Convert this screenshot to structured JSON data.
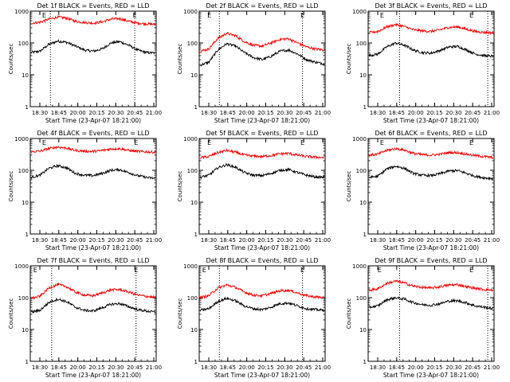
{
  "figure": {
    "common_xlabel": "Start Time (23-Apr-07 18:21:00)",
    "ylabel": "Counts/sec",
    "x_tick_labels": [
      "18:30",
      "18:45",
      "20:00",
      "20:15",
      "20:30",
      "20:45",
      "21:00"
    ],
    "y_tick_labels": [
      "1",
      "10",
      "100",
      "1000"
    ],
    "colors": {
      "events": "#000000",
      "lld": "#ff0000",
      "axis": "#000000"
    }
  },
  "chart_data": [
    {
      "type": "line",
      "detector": "1f",
      "title": "Det 1f BLACK = Events, RED = LLD",
      "xlabel": "Start Time (23-Apr-07 18:21:00)",
      "ylabel": "Counts/sec",
      "x_ticks": [
        "18:30",
        "18:45",
        "20:00",
        "20:15",
        "20:30",
        "20:45",
        "21:00"
      ],
      "ylim": [
        1,
        1000
      ],
      "yscale": "log",
      "markers": [
        {
          "pos": 0.11,
          "label": "E"
        },
        {
          "pos": 0.83,
          "label": "E"
        }
      ],
      "dotted_lines": [
        0.16,
        0.83
      ],
      "series": [
        {
          "name": "Events",
          "color": "#000000",
          "values": [
            50,
            55,
            90,
            115,
            105,
            80,
            60,
            55,
            65,
            100,
            110,
            85,
            60,
            50,
            48
          ]
        },
        {
          "name": "LLD",
          "color": "#ff0000",
          "values": [
            420,
            450,
            560,
            650,
            600,
            480,
            440,
            420,
            460,
            560,
            580,
            480,
            420,
            400,
            380
          ]
        }
      ]
    },
    {
      "type": "line",
      "detector": "2f",
      "title": "Det 2f BLACK = Events, RED = LLD",
      "xlabel": "Start Time (23-Apr-07 18:21:00)",
      "ylabel": "Counts/sec",
      "x_ticks": [
        "18:30",
        "18:45",
        "20:00",
        "20:15",
        "20:30",
        "20:45",
        "21:00"
      ],
      "ylim": [
        1,
        1000
      ],
      "yscale": "log",
      "markers": [
        {
          "pos": 0.08,
          "label": "E"
        },
        {
          "pos": 0.82,
          "label": "E"
        }
      ],
      "dotted_lines": [
        0.16,
        0.82
      ],
      "series": [
        {
          "name": "Events",
          "color": "#000000",
          "values": [
            20,
            25,
            60,
            95,
            80,
            50,
            35,
            30,
            38,
            55,
            60,
            45,
            30,
            25,
            22
          ]
        },
        {
          "name": "LLD",
          "color": "#ff0000",
          "values": [
            55,
            65,
            140,
            200,
            170,
            110,
            85,
            80,
            100,
            130,
            135,
            100,
            75,
            65,
            60
          ]
        }
      ]
    },
    {
      "type": "line",
      "detector": "3f",
      "title": "Det 3f BLACK = Events, RED = LLD",
      "xlabel": "Start Time (23-Apr-07 18:21:00)",
      "ylabel": "Counts/sec",
      "x_ticks": [
        "18:30",
        "18:45",
        "20:00",
        "20:15",
        "20:30",
        "20:45",
        "21:00"
      ],
      "ylim": [
        1,
        1000
      ],
      "yscale": "log",
      "markers": [
        {
          "pos": 0.11,
          "label": "E"
        },
        {
          "pos": 0.82,
          "label": "E"
        }
      ],
      "dotted_lines": [
        0.25,
        0.95
      ],
      "series": [
        {
          "name": "Events",
          "color": "#000000",
          "values": [
            40,
            45,
            75,
            100,
            85,
            60,
            50,
            48,
            58,
            75,
            78,
            60,
            45,
            40,
            38
          ]
        },
        {
          "name": "LLD",
          "color": "#ff0000",
          "values": [
            210,
            230,
            320,
            380,
            330,
            260,
            240,
            230,
            260,
            310,
            320,
            270,
            230,
            215,
            210
          ]
        }
      ]
    },
    {
      "type": "line",
      "detector": "4f",
      "title": "Det 4f BLACK = Events, RED = LLD",
      "xlabel": "Start Time (23-Apr-07 18:21:00)",
      "ylabel": "Counts/sec",
      "x_ticks": [
        "18:30",
        "18:45",
        "20:00",
        "20:15",
        "20:30",
        "20:45",
        "21:00"
      ],
      "ylim": [
        1,
        1000
      ],
      "yscale": "log",
      "markers": [
        {
          "pos": 0.11,
          "label": "E"
        },
        {
          "pos": 0.84,
          "label": "E"
        }
      ],
      "dotted_lines": [],
      "series": [
        {
          "name": "Events",
          "color": "#000000",
          "values": [
            60,
            70,
            115,
            140,
            120,
            80,
            70,
            68,
            80,
            100,
            105,
            85,
            68,
            60,
            55
          ]
        },
        {
          "name": "LLD",
          "color": "#ff0000",
          "values": [
            380,
            400,
            480,
            540,
            500,
            420,
            400,
            390,
            420,
            470,
            480,
            420,
            390,
            380,
            370
          ]
        }
      ]
    },
    {
      "type": "line",
      "detector": "5f",
      "title": "Det 5f BLACK = Events, RED = LLD",
      "xlabel": "Start Time (23-Apr-07 18:21:00)",
      "ylabel": "Counts/sec",
      "x_ticks": [
        "18:30",
        "18:45",
        "20:00",
        "20:15",
        "20:30",
        "20:45",
        "21:00"
      ],
      "ylim": [
        1,
        1000
      ],
      "yscale": "log",
      "markers": [
        {
          "pos": 0.08,
          "label": "E"
        },
        {
          "pos": 0.82,
          "label": "E"
        }
      ],
      "dotted_lines": [],
      "series": [
        {
          "name": "Events",
          "color": "#000000",
          "values": [
            60,
            70,
            120,
            150,
            125,
            85,
            70,
            68,
            80,
            100,
            105,
            85,
            70,
            62,
            60
          ]
        },
        {
          "name": "LLD",
          "color": "#ff0000",
          "values": [
            250,
            270,
            360,
            420,
            370,
            300,
            280,
            270,
            290,
            330,
            340,
            300,
            270,
            260,
            250
          ]
        }
      ]
    },
    {
      "type": "line",
      "detector": "6f",
      "title": "Det 6f BLACK = Events, RED = LLD",
      "xlabel": "Start Time (23-Apr-07 18:21:00)",
      "ylabel": "Counts/sec",
      "x_ticks": [
        "18:30",
        "18:45",
        "20:00",
        "20:15",
        "20:30",
        "20:45",
        "21:00"
      ],
      "ylim": [
        1,
        1000
      ],
      "yscale": "log",
      "markers": [
        {
          "pos": 0.11,
          "label": "E"
        },
        {
          "pos": 0.82,
          "label": "E"
        }
      ],
      "dotted_lines": [],
      "series": [
        {
          "name": "Events",
          "color": "#000000",
          "values": [
            60,
            65,
            110,
            135,
            115,
            80,
            70,
            68,
            78,
            95,
            98,
            80,
            65,
            58,
            55
          ]
        },
        {
          "name": "LLD",
          "color": "#ff0000",
          "values": [
            300,
            320,
            420,
            480,
            430,
            340,
            310,
            300,
            320,
            360,
            360,
            320,
            290,
            270,
            250
          ]
        }
      ]
    },
    {
      "type": "line",
      "detector": "7f",
      "title": "Det 7f BLACK = Events, RED = LLD",
      "xlabel": "Start Time (23-Apr-07 18:21:00)",
      "ylabel": "Counts/sec",
      "x_ticks": [
        "18:30",
        "18:45",
        "20:00",
        "20:15",
        "20:30",
        "20:45",
        "21:00"
      ],
      "ylim": [
        1,
        1000
      ],
      "yscale": "log",
      "markers": [
        {
          "pos": 0.04,
          "label": "E"
        },
        {
          "pos": 0.84,
          "label": "E"
        }
      ],
      "dotted_lines": [
        0.17,
        0.84
      ],
      "series": [
        {
          "name": "Events",
          "color": "#000000",
          "values": [
            35,
            40,
            70,
            90,
            75,
            50,
            40,
            38,
            48,
            62,
            65,
            52,
            42,
            38,
            35
          ]
        },
        {
          "name": "LLD",
          "color": "#ff0000",
          "values": [
            95,
            110,
            200,
            260,
            220,
            150,
            120,
            115,
            140,
            175,
            180,
            150,
            120,
            110,
            100
          ]
        }
      ]
    },
    {
      "type": "line",
      "detector": "8f",
      "title": "Det 8f BLACK = Events, RED = LLD",
      "xlabel": "Start Time (23-Apr-07 18:21:00)",
      "ylabel": "Counts/sec",
      "x_ticks": [
        "18:30",
        "18:45",
        "20:00",
        "20:15",
        "20:30",
        "20:45",
        "21:00"
      ],
      "ylim": [
        1,
        1000
      ],
      "yscale": "log",
      "markers": [
        {
          "pos": 0.04,
          "label": "E"
        },
        {
          "pos": 0.82,
          "label": "E"
        }
      ],
      "dotted_lines": [
        0.16,
        0.82
      ],
      "series": [
        {
          "name": "Events",
          "color": "#000000",
          "values": [
            40,
            45,
            75,
            95,
            80,
            55,
            45,
            42,
            50,
            65,
            68,
            55,
            45,
            42,
            40
          ]
        },
        {
          "name": "LLD",
          "color": "#ff0000",
          "values": [
            100,
            115,
            200,
            250,
            210,
            150,
            120,
            115,
            135,
            165,
            170,
            140,
            115,
            105,
            100
          ]
        }
      ]
    },
    {
      "type": "line",
      "detector": "9f",
      "title": "Det 9f BLACK = Events, RED = LLD",
      "xlabel": "Start Time (23-Apr-07 18:21:00)",
      "ylabel": "Counts/sec",
      "x_ticks": [
        "18:30",
        "18:45",
        "20:00",
        "20:15",
        "20:30",
        "20:45",
        "21:00"
      ],
      "ylim": [
        1,
        1000
      ],
      "yscale": "log",
      "markers": [
        {
          "pos": 0.09,
          "label": "E"
        },
        {
          "pos": 0.82,
          "label": "E"
        }
      ],
      "dotted_lines": [
        0.25,
        0.95
      ],
      "series": [
        {
          "name": "Events",
          "color": "#000000",
          "values": [
            50,
            55,
            85,
            100,
            90,
            70,
            60,
            58,
            65,
            78,
            80,
            68,
            55,
            50,
            45
          ]
        },
        {
          "name": "LLD",
          "color": "#ff0000",
          "values": [
            170,
            190,
            280,
            330,
            290,
            230,
            210,
            200,
            220,
            250,
            255,
            220,
            195,
            180,
            170
          ]
        }
      ]
    }
  ]
}
